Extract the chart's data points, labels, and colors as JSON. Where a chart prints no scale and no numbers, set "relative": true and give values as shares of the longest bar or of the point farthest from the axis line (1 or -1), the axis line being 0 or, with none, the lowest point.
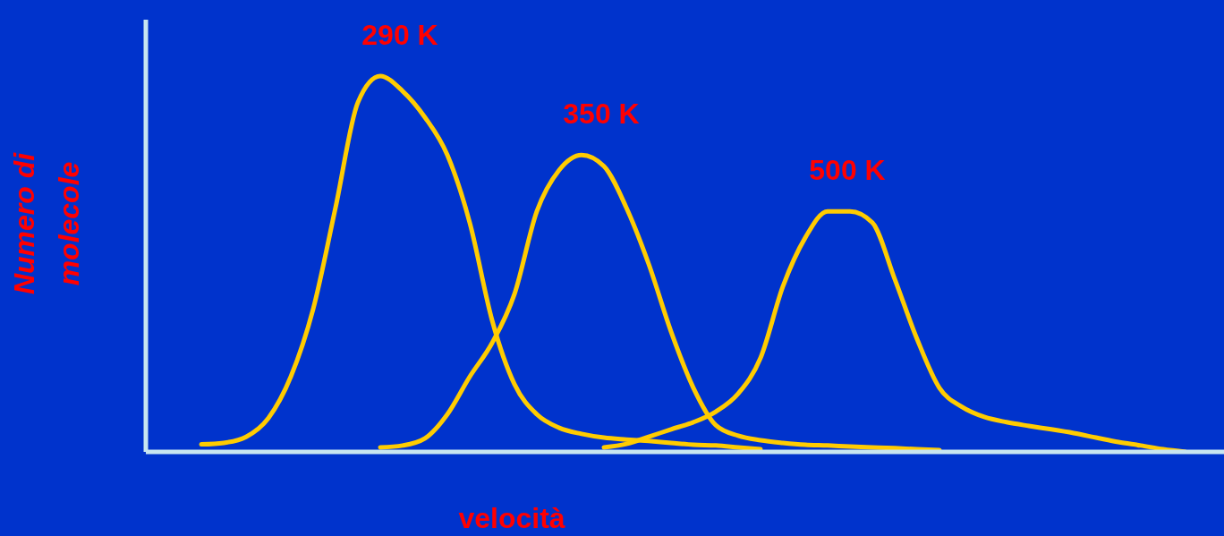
{
  "chart_data": {
    "type": "line",
    "relative": true,
    "xlabel": "velocità",
    "ylabel": "Numero di\nmolecole",
    "marker": "none",
    "categories": [
      null,
      null,
      null,
      null,
      null,
      null,
      null,
      null,
      null,
      null,
      null,
      null,
      null,
      null,
      null,
      null,
      null,
      null,
      null,
      null,
      null,
      null,
      null,
      null,
      null,
      null,
      null,
      null,
      null,
      null,
      null,
      null,
      null,
      null,
      null,
      null,
      null,
      null,
      null,
      null,
      null,
      null,
      null,
      null,
      null
    ],
    "series": [
      {
        "name": "290 K",
        "color": "#ffcc00",
        "values": [
          0.02,
          0.024,
          0.04,
          0.09,
          0.2,
          0.38,
          0.65,
          0.93,
          1,
          0.96,
          0.89,
          0.79,
          0.61,
          0.35,
          0.18,
          0.1,
          0.064,
          0.048,
          0.038,
          0.033,
          0.029,
          0.024,
          0.019,
          0.017,
          0.012,
          0.007,
          null,
          null,
          null,
          null,
          null,
          null,
          null,
          null,
          null,
          null,
          null,
          null,
          null,
          null,
          null,
          null,
          null,
          null,
          null
        ]
      },
      {
        "name": "350 K",
        "color": "#ffcc00",
        "values": [
          null,
          null,
          null,
          null,
          null,
          null,
          null,
          null,
          0.012,
          0.017,
          0.036,
          0.1,
          0.2,
          0.29,
          0.42,
          0.64,
          0.75,
          0.79,
          0.76,
          0.65,
          0.5,
          0.32,
          0.17,
          0.071,
          0.043,
          0.031,
          0.024,
          0.019,
          0.017,
          0.014,
          0.012,
          0.01,
          0.007,
          0.005,
          null,
          null,
          null,
          null,
          null,
          null,
          null,
          null,
          null,
          null,
          null
        ]
      },
      {
        "name": "500 K",
        "color": "#ffcc00",
        "values": [
          null,
          null,
          null,
          null,
          null,
          null,
          null,
          null,
          null,
          null,
          null,
          null,
          null,
          null,
          null,
          null,
          null,
          null,
          0.012,
          0.021,
          0.04,
          0.06,
          0.079,
          0.107,
          0.155,
          0.25,
          0.44,
          0.57,
          0.64,
          0.64,
          0.61,
          0.46,
          0.3,
          0.17,
          0.12,
          0.093,
          0.079,
          0.069,
          0.06,
          0.05,
          0.038,
          0.026,
          0.017,
          0.007,
          0
        ]
      }
    ]
  }
}
